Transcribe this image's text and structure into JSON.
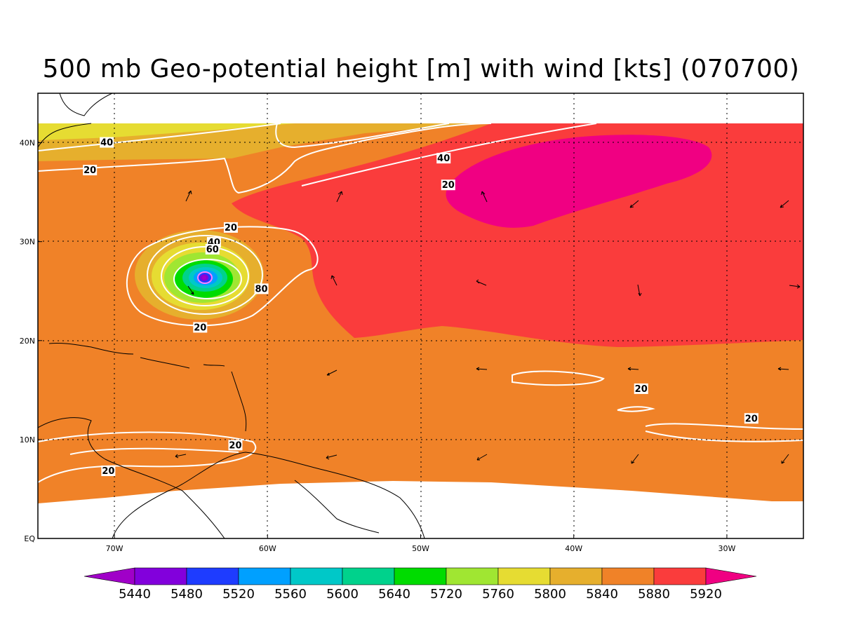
{
  "title": "500 mb Geo-potential height [m] with wind [kts] (070700)",
  "map": {
    "lon_range": [
      -75,
      -25
    ],
    "lat_range": [
      0,
      45
    ],
    "lat_ticks": [
      {
        "value": 40,
        "label": "40N"
      },
      {
        "value": 30,
        "label": "30N"
      },
      {
        "value": 20,
        "label": "20N"
      },
      {
        "value": 10,
        "label": "10N"
      },
      {
        "value": 0,
        "label": "EQ"
      }
    ],
    "lon_ticks": [
      {
        "value": -70,
        "label": "70W"
      },
      {
        "value": -60,
        "label": "60W"
      },
      {
        "value": -50,
        "label": "50W"
      },
      {
        "value": -40,
        "label": "40W"
      },
      {
        "value": -30,
        "label": "30W"
      }
    ],
    "grid_lines": "dotted"
  },
  "contour_labels": [
    {
      "text": "40",
      "lon": -70.5,
      "lat": 40.0
    },
    {
      "text": "20",
      "lon": -71.6,
      "lat": 37.2
    },
    {
      "text": "40",
      "lon": -48.5,
      "lat": 38.4
    },
    {
      "text": "20",
      "lon": -48.2,
      "lat": 35.7
    },
    {
      "text": "20",
      "lon": -62.4,
      "lat": 31.4
    },
    {
      "text": "40",
      "lon": -63.5,
      "lat": 29.9
    },
    {
      "text": "60",
      "lon": -63.6,
      "lat": 29.2
    },
    {
      "text": "80",
      "lon": -60.4,
      "lat": 25.2
    },
    {
      "text": "20",
      "lon": -64.4,
      "lat": 21.3
    },
    {
      "text": "20",
      "lon": -35.6,
      "lat": 15.1
    },
    {
      "text": "20",
      "lon": -28.4,
      "lat": 12.1
    },
    {
      "text": "20",
      "lon": -62.1,
      "lat": 9.4
    },
    {
      "text": "20",
      "lon": -70.4,
      "lat": 6.8
    }
  ],
  "wind_vectors_note_free": true,
  "colorbar": {
    "levels": [
      "5440",
      "5480",
      "5520",
      "5560",
      "5600",
      "5640",
      "5720",
      "5760",
      "5800",
      "5840",
      "5880",
      "5920"
    ],
    "colors": [
      "#a000c8",
      "#8200dc",
      "#1e3cff",
      "#00a0ff",
      "#00c8c8",
      "#00d28c",
      "#00dc00",
      "#a0e632",
      "#e6dc32",
      "#e6af2d",
      "#f08228",
      "#fa3c3c",
      "#f00082"
    ]
  }
}
